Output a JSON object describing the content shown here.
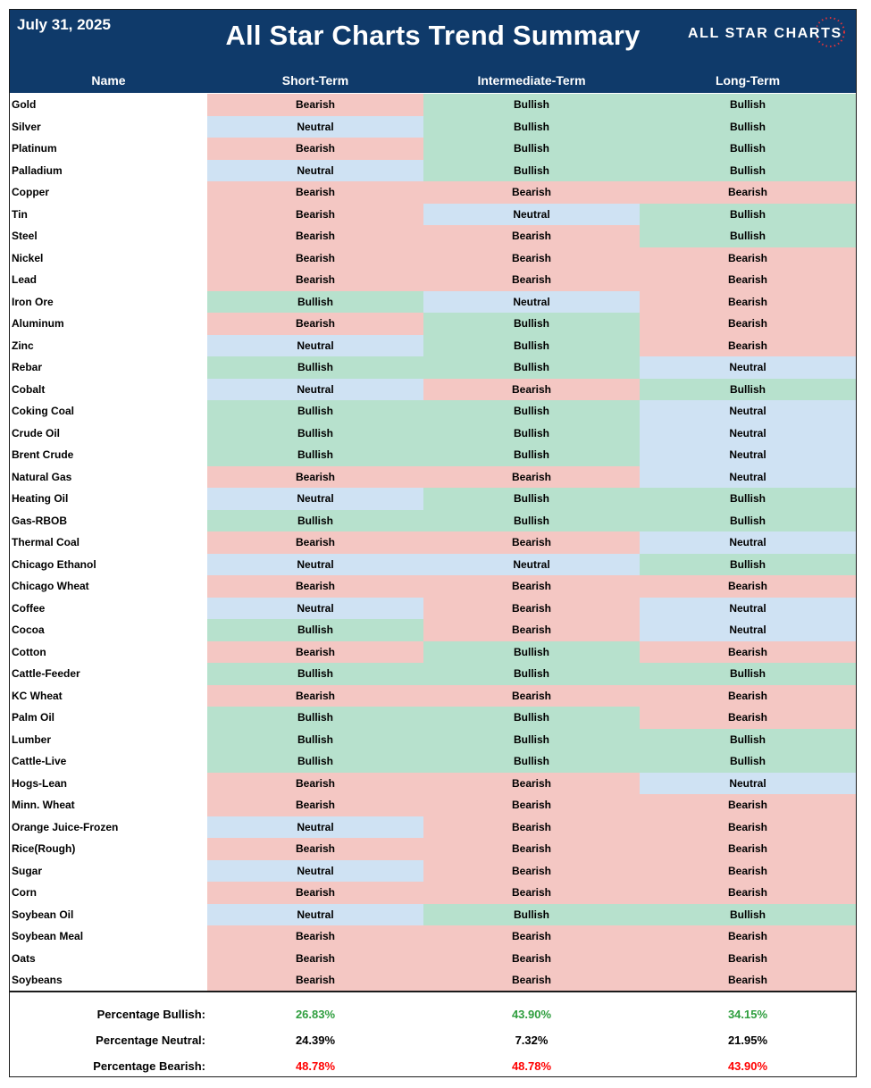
{
  "header": {
    "date": "July 31, 2025",
    "title": "All Star Charts Trend Summary",
    "logo_text": "ALL STAR CHARTS"
  },
  "columns": [
    "Name",
    "Short-Term",
    "Intermediate-Term",
    "Long-Term"
  ],
  "rows": [
    {
      "name": "Gold",
      "short": "Bearish",
      "intermediate": "Bullish",
      "long": "Bullish"
    },
    {
      "name": "Silver",
      "short": "Neutral",
      "intermediate": "Bullish",
      "long": "Bullish"
    },
    {
      "name": "Platinum",
      "short": "Bearish",
      "intermediate": "Bullish",
      "long": "Bullish"
    },
    {
      "name": "Palladium",
      "short": "Neutral",
      "intermediate": "Bullish",
      "long": "Bullish"
    },
    {
      "name": "Copper",
      "short": "Bearish",
      "intermediate": "Bearish",
      "long": "Bearish"
    },
    {
      "name": "Tin",
      "short": "Bearish",
      "intermediate": "Neutral",
      "long": "Bullish"
    },
    {
      "name": "Steel",
      "short": "Bearish",
      "intermediate": "Bearish",
      "long": "Bullish"
    },
    {
      "name": "Nickel",
      "short": "Bearish",
      "intermediate": "Bearish",
      "long": "Bearish"
    },
    {
      "name": "Lead",
      "short": "Bearish",
      "intermediate": "Bearish",
      "long": "Bearish"
    },
    {
      "name": "Iron Ore",
      "short": "Bullish",
      "intermediate": "Neutral",
      "long": "Bearish"
    },
    {
      "name": "Aluminum",
      "short": "Bearish",
      "intermediate": "Bullish",
      "long": "Bearish"
    },
    {
      "name": "Zinc",
      "short": "Neutral",
      "intermediate": "Bullish",
      "long": "Bearish"
    },
    {
      "name": "Rebar",
      "short": "Bullish",
      "intermediate": "Bullish",
      "long": "Neutral"
    },
    {
      "name": "Cobalt",
      "short": "Neutral",
      "intermediate": "Bearish",
      "long": "Bullish"
    },
    {
      "name": "Coking Coal",
      "short": "Bullish",
      "intermediate": "Bullish",
      "long": "Neutral"
    },
    {
      "name": "Crude Oil",
      "short": "Bullish",
      "intermediate": "Bullish",
      "long": "Neutral"
    },
    {
      "name": "Brent Crude",
      "short": "Bullish",
      "intermediate": "Bullish",
      "long": "Neutral"
    },
    {
      "name": "Natural Gas",
      "short": "Bearish",
      "intermediate": "Bearish",
      "long": "Neutral"
    },
    {
      "name": "Heating Oil",
      "short": "Neutral",
      "intermediate": "Bullish",
      "long": "Bullish"
    },
    {
      "name": "Gas-RBOB",
      "short": "Bullish",
      "intermediate": "Bullish",
      "long": "Bullish"
    },
    {
      "name": "Thermal Coal",
      "short": "Bearish",
      "intermediate": "Bearish",
      "long": "Neutral"
    },
    {
      "name": "Chicago Ethanol",
      "short": "Neutral",
      "intermediate": "Neutral",
      "long": "Bullish"
    },
    {
      "name": "Chicago Wheat",
      "short": "Bearish",
      "intermediate": "Bearish",
      "long": "Bearish"
    },
    {
      "name": "Coffee",
      "short": "Neutral",
      "intermediate": "Bearish",
      "long": "Neutral"
    },
    {
      "name": "Cocoa",
      "short": "Bullish",
      "intermediate": "Bearish",
      "long": "Neutral"
    },
    {
      "name": "Cotton",
      "short": "Bearish",
      "intermediate": "Bullish",
      "long": "Bearish"
    },
    {
      "name": "Cattle-Feeder",
      "short": "Bullish",
      "intermediate": "Bullish",
      "long": "Bullish"
    },
    {
      "name": "KC Wheat",
      "short": "Bearish",
      "intermediate": "Bearish",
      "long": "Bearish"
    },
    {
      "name": "Palm Oil",
      "short": "Bullish",
      "intermediate": "Bullish",
      "long": "Bearish"
    },
    {
      "name": "Lumber",
      "short": "Bullish",
      "intermediate": "Bullish",
      "long": "Bullish"
    },
    {
      "name": "Cattle-Live",
      "short": "Bullish",
      "intermediate": "Bullish",
      "long": "Bullish"
    },
    {
      "name": "Hogs-Lean",
      "short": "Bearish",
      "intermediate": "Bearish",
      "long": "Neutral"
    },
    {
      "name": "Minn. Wheat",
      "short": "Bearish",
      "intermediate": "Bearish",
      "long": "Bearish"
    },
    {
      "name": "Orange Juice-Frozen",
      "short": "Neutral",
      "intermediate": "Bearish",
      "long": "Bearish"
    },
    {
      "name": "Rice(Rough)",
      "short": "Bearish",
      "intermediate": "Bearish",
      "long": "Bearish"
    },
    {
      "name": "Sugar",
      "short": "Neutral",
      "intermediate": "Bearish",
      "long": "Bearish"
    },
    {
      "name": "Corn",
      "short": "Bearish",
      "intermediate": "Bearish",
      "long": "Bearish"
    },
    {
      "name": "Soybean Oil",
      "short": "Neutral",
      "intermediate": "Bullish",
      "long": "Bullish"
    },
    {
      "name": "Soybean Meal",
      "short": "Bearish",
      "intermediate": "Bearish",
      "long": "Bearish"
    },
    {
      "name": "Oats",
      "short": "Bearish",
      "intermediate": "Bearish",
      "long": "Bearish"
    },
    {
      "name": "Soybeans",
      "short": "Bearish",
      "intermediate": "Bearish",
      "long": "Bearish"
    }
  ],
  "summary": [
    {
      "label": "Percentage Bullish:",
      "values": [
        "26.83%",
        "43.90%",
        "34.15%"
      ],
      "color": "#2e9e3e"
    },
    {
      "label": "Percentage Neutral:",
      "values": [
        "24.39%",
        "7.32%",
        "21.95%"
      ],
      "color": "#000000"
    },
    {
      "label": "Percentage Bearish:",
      "values": [
        "48.78%",
        "48.78%",
        "43.90%"
      ],
      "color": "#ff0000"
    }
  ],
  "colors": {
    "banner": "#0f3a6a",
    "bearish": "#f4c7c3",
    "bullish": "#b7e1cd",
    "neutral": "#cfe2f3"
  }
}
